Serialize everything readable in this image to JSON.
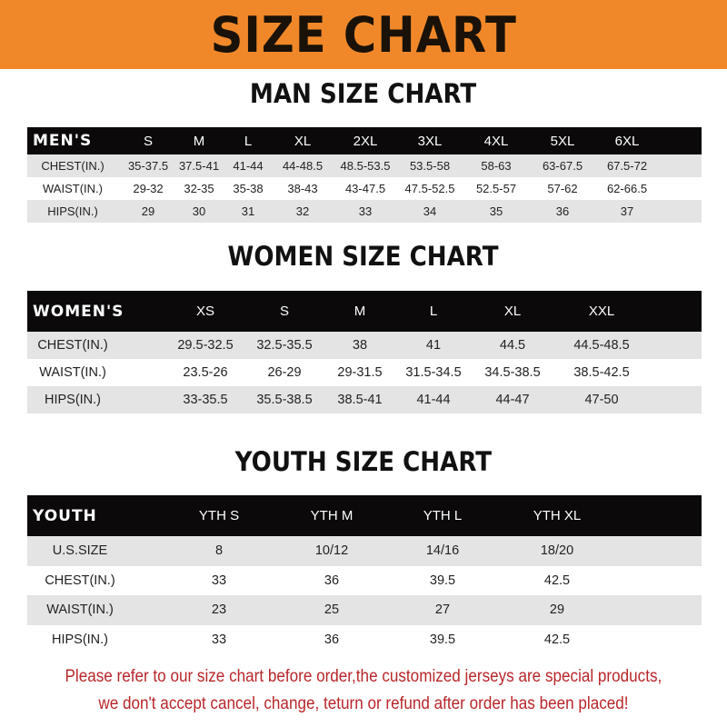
{
  "banner": "SIZE CHART",
  "men": {
    "title": "MAN SIZE CHART",
    "header": [
      "MEN'S",
      "S",
      "M",
      "L",
      "XL",
      "2XL",
      "3XL",
      "4XL",
      "5XL",
      "6XL"
    ],
    "rows": [
      [
        "CHEST(IN.)",
        "35-37.5",
        "37.5-41",
        "41-44",
        "44-48.5",
        "48.5-53.5",
        "53.5-58",
        "58-63",
        "63-67.5",
        "67.5-72"
      ],
      [
        "WAIST(IN.)",
        "29-32",
        "32-35",
        "35-38",
        "38-43",
        "43-47.5",
        "47.5-52.5",
        "52.5-57",
        "57-62",
        "62-66.5"
      ],
      [
        "HIPS(IN.)",
        "29",
        "30",
        "31",
        "32",
        "33",
        "34",
        "35",
        "36",
        "37"
      ]
    ]
  },
  "women": {
    "title": "WOMEN SIZE CHART",
    "header": [
      "WOMEN'S",
      "XS",
      "S",
      "M",
      "L",
      "XL",
      "XXL"
    ],
    "rows": [
      [
        "CHEST(IN.)",
        "29.5-32.5",
        "32.5-35.5",
        "38",
        "41",
        "44.5",
        "44.5-48.5"
      ],
      [
        "WAIST(IN.)",
        "23.5-26",
        "26-29",
        "29-31.5",
        "31.5-34.5",
        "34.5-38.5",
        "38.5-42.5"
      ],
      [
        "HIPS(IN.)",
        "33-35.5",
        "35.5-38.5",
        "38.5-41",
        "41-44",
        "44-47",
        "47-50"
      ]
    ]
  },
  "youth": {
    "title": "YOUTH SIZE CHART",
    "header": [
      "YOUTH",
      "YTH S",
      "YTH M",
      "YTH L",
      "YTH XL"
    ],
    "rows": [
      [
        "U.S.SIZE",
        "8",
        "10/12",
        "14/16",
        "18/20"
      ],
      [
        "CHEST(IN.)",
        "33",
        "36",
        "39.5",
        "42.5"
      ],
      [
        "WAIST(IN.)",
        "23",
        "25",
        "27",
        "29"
      ],
      [
        "HIPS(IN.)",
        "33",
        "36",
        "39.5",
        "42.5"
      ]
    ]
  },
  "footer": {
    "line1": "Please refer to our size chart before order,the customized jerseys are special products,",
    "line2": "we don't accept cancel, change, teturn or refund after order has been placed!"
  },
  "colors": {
    "banner": "#f0882a",
    "header_row": "#0b0909",
    "stripe": "#e4e4e4",
    "notice": "#b8262a"
  }
}
